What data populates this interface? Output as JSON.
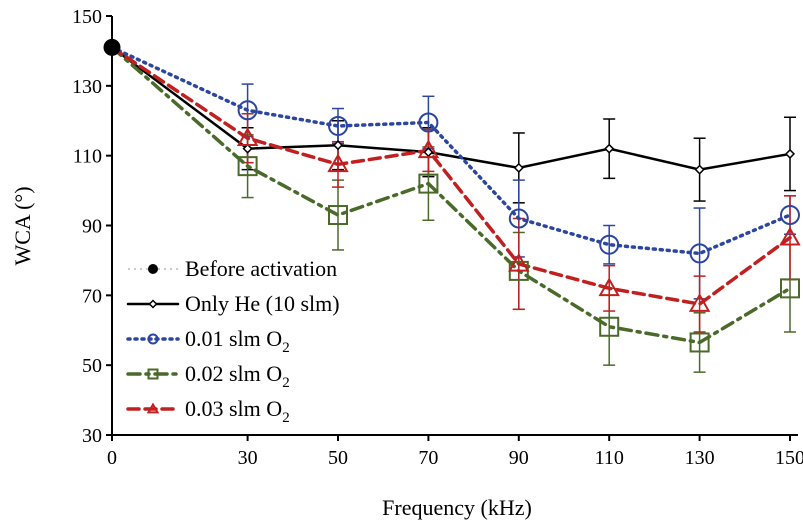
{
  "chart_data": {
    "type": "line",
    "xlabel": "Frequency (kHz)",
    "ylabel": "WCA (°)",
    "ylim": [
      30,
      150
    ],
    "yticks": [
      30,
      50,
      70,
      90,
      110,
      130,
      150
    ],
    "xticks": [
      0,
      30,
      50,
      70,
      90,
      110,
      130,
      150
    ],
    "grid": false,
    "legend_position": "bottom-left",
    "before_activation": {
      "name": "Before activation",
      "x": 0,
      "y": 141,
      "color": "#000000"
    },
    "series": [
      {
        "name": "Only He (10 slm)",
        "color": "#000000",
        "dash": "solid",
        "marker": "diamond",
        "x": [
          0,
          30,
          50,
          70,
          90,
          110,
          130,
          150
        ],
        "y": [
          141,
          112,
          113,
          111,
          106.5,
          112,
          106,
          110.5
        ],
        "err": [
          0,
          6,
          7,
          7,
          10,
          8.5,
          9,
          10.5
        ]
      },
      {
        "name": "0.01 slm O₂",
        "legend_base": "0.01 slm O",
        "legend_sub": "2",
        "color": "#2c46a0",
        "dash": "dotted",
        "marker": "circle",
        "x": [
          0,
          30,
          50,
          70,
          90,
          110,
          130,
          150
        ],
        "y": [
          141,
          123,
          118.5,
          119.5,
          92,
          84.5,
          82,
          93
        ],
        "err": [
          0,
          7.5,
          5,
          7.5,
          11,
          5.5,
          13,
          5.5
        ]
      },
      {
        "name": "0.02 slm O₂",
        "legend_base": "0.02 slm O",
        "legend_sub": "2",
        "color": "#4a6a2a",
        "dash": "dashdot",
        "marker": "square",
        "x": [
          0,
          30,
          50,
          70,
          90,
          110,
          130,
          150
        ],
        "y": [
          141,
          107,
          93,
          102,
          77,
          61,
          56.5,
          72
        ],
        "err": [
          0,
          9,
          10,
          10.5,
          11,
          11,
          8.5,
          12.5
        ]
      },
      {
        "name": "0.03 slm O₂",
        "legend_base": "0.03 slm O",
        "legend_sub": "2",
        "color": "#c0201f",
        "dash": "dashed",
        "marker": "triangle",
        "x": [
          0,
          30,
          50,
          70,
          90,
          110,
          130,
          150
        ],
        "y": [
          141,
          115,
          107.5,
          111.5,
          79,
          72,
          67.5,
          86.5
        ],
        "err": [
          0,
          7,
          6.5,
          6,
          13,
          6.5,
          8,
          12
        ]
      }
    ]
  }
}
